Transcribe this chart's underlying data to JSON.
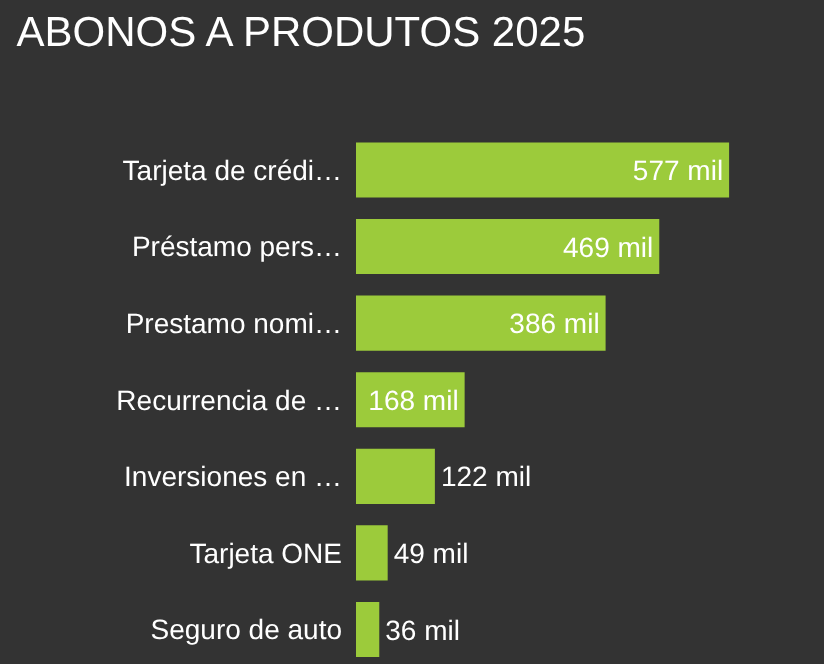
{
  "chart_data": {
    "type": "bar",
    "orientation": "horizontal",
    "title": "ABONOS A PRODUTOS 2025",
    "categories": [
      "Tarjeta de crédi…",
      "Préstamo pers…",
      "Prestamo nomi…",
      "Recurrencia de …",
      "Inversiones en …",
      "Tarjeta ONE",
      "Seguro de auto"
    ],
    "values": [
      577,
      469,
      386,
      168,
      122,
      49,
      36
    ],
    "value_labels": [
      "577 mil",
      "469 mil",
      "386 mil",
      "168 mil",
      "122 mil",
      "49 mil",
      "36 mil"
    ],
    "color": "#9ccb3b",
    "grid": false,
    "legend": false,
    "tick_labels": "y"
  }
}
